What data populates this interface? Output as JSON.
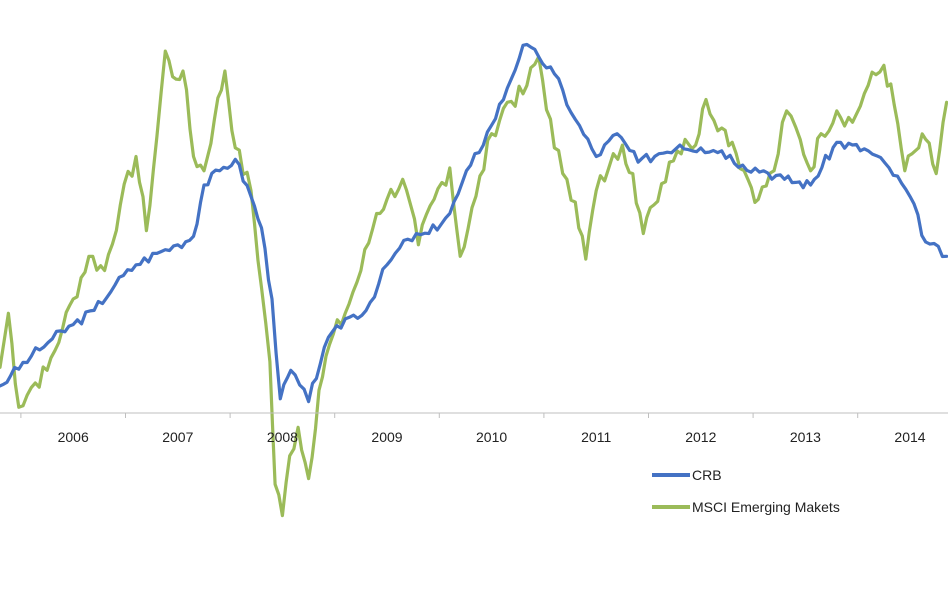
{
  "chart_data": {
    "type": "line",
    "title": "",
    "xlabel": "",
    "ylabel": "",
    "x_ticks": [
      "2006",
      "2007",
      "2008",
      "2009",
      "2010",
      "2011",
      "2012",
      "2013",
      "2014"
    ],
    "xlim": [
      2005.3,
      2014.35
    ],
    "y_axis_visible": false,
    "grid": false,
    "legend_position": "bottom-right",
    "series": [
      {
        "name": "CRB",
        "color": "#4472c4",
        "points": [
          [
            2005.3,
            0.95
          ],
          [
            2005.4,
            1.3
          ],
          [
            2005.6,
            2.0
          ],
          [
            2005.8,
            2.6
          ],
          [
            2006.0,
            3.1
          ],
          [
            2006.2,
            3.6
          ],
          [
            2006.4,
            4.5
          ],
          [
            2006.6,
            5.2
          ],
          [
            2006.8,
            5.6
          ],
          [
            2007.0,
            5.9
          ],
          [
            2007.15,
            6.2
          ],
          [
            2007.25,
            8.0
          ],
          [
            2007.4,
            8.5
          ],
          [
            2007.55,
            8.9
          ],
          [
            2007.7,
            7.6
          ],
          [
            2007.8,
            6.5
          ],
          [
            2007.9,
            4.0
          ],
          [
            2007.98,
            0.5
          ],
          [
            2008.08,
            1.5
          ],
          [
            2008.25,
            0.4
          ],
          [
            2008.4,
            2.3
          ],
          [
            2008.6,
            3.3
          ],
          [
            2008.8,
            3.6
          ],
          [
            2009.0,
            5.2
          ],
          [
            2009.2,
            6.1
          ],
          [
            2009.4,
            6.3
          ],
          [
            2009.6,
            7.0
          ],
          [
            2009.8,
            8.7
          ],
          [
            2010.0,
            10.1
          ],
          [
            2010.15,
            11.4
          ],
          [
            2010.3,
            12.9
          ],
          [
            2010.45,
            12.5
          ],
          [
            2010.6,
            11.9
          ],
          [
            2010.8,
            10.3
          ],
          [
            2011.0,
            9.0
          ],
          [
            2011.2,
            9.8
          ],
          [
            2011.4,
            8.8
          ],
          [
            2011.6,
            9.1
          ],
          [
            2011.8,
            9.4
          ],
          [
            2012.0,
            9.3
          ],
          [
            2012.2,
            9.2
          ],
          [
            2012.4,
            8.7
          ],
          [
            2012.6,
            8.5
          ],
          [
            2012.8,
            8.2
          ],
          [
            2013.05,
            8.0
          ],
          [
            2013.3,
            9.5
          ],
          [
            2013.6,
            9.2
          ],
          [
            2013.8,
            8.6
          ],
          [
            2014.0,
            7.6
          ],
          [
            2014.15,
            6.0
          ],
          [
            2014.35,
            5.5
          ]
        ]
      },
      {
        "name": "MSCI Emerging Makets",
        "color": "#9bbb59",
        "points": [
          [
            2005.3,
            1.6
          ],
          [
            2005.38,
            3.5
          ],
          [
            2005.48,
            0.2
          ],
          [
            2005.6,
            0.9
          ],
          [
            2005.75,
            1.5
          ],
          [
            2005.9,
            3.0
          ],
          [
            2006.0,
            4.0
          ],
          [
            2006.15,
            5.5
          ],
          [
            2006.3,
            5.0
          ],
          [
            2006.45,
            7.3
          ],
          [
            2006.6,
            9.0
          ],
          [
            2006.7,
            6.4
          ],
          [
            2006.8,
            9.7
          ],
          [
            2006.88,
            12.7
          ],
          [
            2006.95,
            11.8
          ],
          [
            2007.05,
            12.0
          ],
          [
            2007.15,
            9.0
          ],
          [
            2007.25,
            8.5
          ],
          [
            2007.35,
            10.3
          ],
          [
            2007.45,
            12.0
          ],
          [
            2007.55,
            9.3
          ],
          [
            2007.7,
            7.8
          ],
          [
            2007.8,
            4.4
          ],
          [
            2007.88,
            1.8
          ],
          [
            2007.93,
            -2.5
          ],
          [
            2008.0,
            -3.6
          ],
          [
            2008.07,
            -1.5
          ],
          [
            2008.15,
            -0.5
          ],
          [
            2008.25,
            -2.3
          ],
          [
            2008.35,
            0.8
          ],
          [
            2008.45,
            2.4
          ],
          [
            2008.6,
            3.5
          ],
          [
            2008.75,
            5.0
          ],
          [
            2008.9,
            7.0
          ],
          [
            2009.0,
            7.5
          ],
          [
            2009.15,
            8.2
          ],
          [
            2009.3,
            5.9
          ],
          [
            2009.45,
            7.5
          ],
          [
            2009.6,
            8.6
          ],
          [
            2009.7,
            5.5
          ],
          [
            2009.85,
            7.6
          ],
          [
            2010.0,
            9.8
          ],
          [
            2010.15,
            10.9
          ],
          [
            2010.3,
            11.2
          ],
          [
            2010.45,
            12.5
          ],
          [
            2010.6,
            9.3
          ],
          [
            2010.72,
            8.2
          ],
          [
            2010.8,
            7.4
          ],
          [
            2010.9,
            5.4
          ],
          [
            2011.0,
            7.8
          ],
          [
            2011.12,
            8.6
          ],
          [
            2011.25,
            9.4
          ],
          [
            2011.35,
            8.4
          ],
          [
            2011.45,
            6.3
          ],
          [
            2011.55,
            7.3
          ],
          [
            2011.7,
            8.8
          ],
          [
            2011.85,
            9.6
          ],
          [
            2011.95,
            9.4
          ],
          [
            2012.05,
            11.0
          ],
          [
            2012.2,
            10.0
          ],
          [
            2012.3,
            9.5
          ],
          [
            2012.45,
            8.2
          ],
          [
            2012.55,
            7.5
          ],
          [
            2012.7,
            8.5
          ],
          [
            2012.82,
            10.6
          ],
          [
            2012.95,
            9.6
          ],
          [
            2013.05,
            8.5
          ],
          [
            2013.15,
            9.8
          ],
          [
            2013.3,
            10.6
          ],
          [
            2013.45,
            10.2
          ],
          [
            2013.6,
            11.5
          ],
          [
            2013.75,
            12.2
          ],
          [
            2013.85,
            10.8
          ],
          [
            2013.95,
            8.5
          ],
          [
            2014.05,
            9.2
          ],
          [
            2014.15,
            9.6
          ],
          [
            2014.25,
            8.4
          ],
          [
            2014.35,
            10.9
          ]
        ]
      }
    ]
  }
}
